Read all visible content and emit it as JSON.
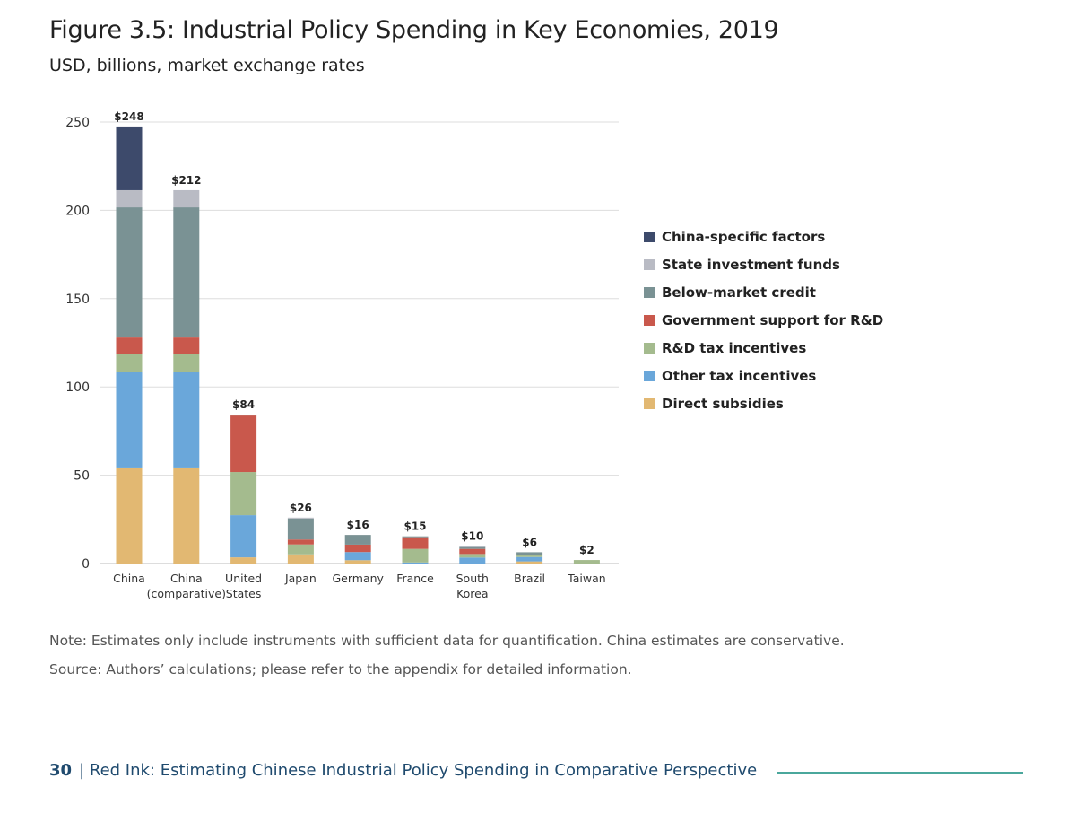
{
  "chart_data": {
    "type": "bar",
    "stacked": true,
    "title": "Figure 3.5: Industrial Policy Spending in Key Economies, 2019",
    "subtitle": "USD, billions, market exchange rates",
    "ylim": [
      0,
      250
    ],
    "yticks": [
      0,
      50,
      100,
      150,
      200,
      250
    ],
    "grid": true,
    "legend_position": "right",
    "categories": [
      "China",
      "China (comparative)",
      "United States",
      "Japan",
      "Germany",
      "France",
      "South Korea",
      "Brazil",
      "Taiwan"
    ],
    "category_lines": [
      [
        "China"
      ],
      [
        "China",
        "(comparative)"
      ],
      [
        "United",
        "States"
      ],
      [
        "Japan"
      ],
      [
        "Germany"
      ],
      [
        "France"
      ],
      [
        "South",
        "Korea"
      ],
      [
        "Brazil"
      ],
      [
        "Taiwan"
      ]
    ],
    "totals_labels": [
      "$248",
      "$212",
      "$84",
      "$26",
      "$16",
      "$15",
      "$10",
      "$6",
      "$2"
    ],
    "series": [
      {
        "name": "Direct subsidies",
        "color": "#e2b872",
        "values": [
          54.4,
          54.4,
          3.5,
          5.2,
          1.9,
          0,
          0,
          1.2,
          0
        ]
      },
      {
        "name": "Other tax incentives",
        "color": "#6aa7da",
        "values": [
          54.3,
          54.3,
          23.9,
          0,
          4.6,
          0.6,
          3.4,
          2.5,
          0
        ]
      },
      {
        "name": "R&D tax incentives",
        "color": "#a4bb8e",
        "values": [
          10.2,
          10.2,
          24.4,
          5.6,
          0,
          7.7,
          2.0,
          0.9,
          2.0
        ]
      },
      {
        "name": "Government support for R&D",
        "color": "#c9584c",
        "values": [
          9.1,
          9.1,
          32.0,
          2.8,
          4.2,
          6.6,
          2.9,
          0,
          0
        ]
      },
      {
        "name": "Below-market credit",
        "color": "#7a9294",
        "values": [
          73.7,
          73.7,
          0.5,
          11.9,
          5.5,
          0.5,
          1.0,
          1.8,
          0
        ]
      },
      {
        "name": "State investment funds",
        "color": "#b9bbc4",
        "values": [
          9.7,
          9.7,
          0,
          0.5,
          0,
          0,
          0.7,
          0,
          0
        ]
      },
      {
        "name": "China-specific factors",
        "color": "#3d4a6b",
        "values": [
          36.1,
          0,
          0,
          0,
          0,
          0,
          0,
          0,
          0
        ]
      }
    ]
  },
  "note": "Note: Estimates only include instruments with sufficient data for quantification. China estimates are conservative.",
  "source": "Source: Authors’ calculations; please refer to the appendix for detailed information.",
  "footer": {
    "page": "30",
    "separator": "|",
    "text": "Red Ink: Estimating Chinese Industrial Policy Spending in Comparative Perspective"
  }
}
